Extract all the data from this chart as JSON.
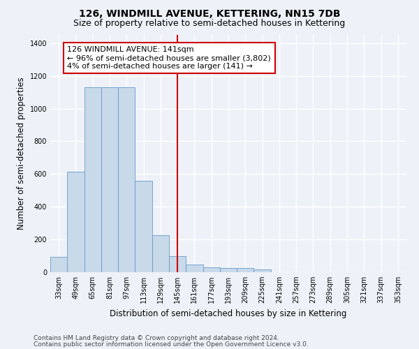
{
  "title": "126, WINDMILL AVENUE, KETTERING, NN15 7DB",
  "subtitle": "Size of property relative to semi-detached houses in Kettering",
  "xlabel": "Distribution of semi-detached houses by size in Kettering",
  "ylabel": "Number of semi-detached properties",
  "categories": [
    "33sqm",
    "49sqm",
    "65sqm",
    "81sqm",
    "97sqm",
    "113sqm",
    "129sqm",
    "145sqm",
    "161sqm",
    "177sqm",
    "193sqm",
    "209sqm",
    "225sqm",
    "241sqm",
    "257sqm",
    "273sqm",
    "289sqm",
    "305sqm",
    "321sqm",
    "337sqm",
    "353sqm"
  ],
  "values": [
    95,
    615,
    1130,
    1130,
    1130,
    560,
    225,
    100,
    48,
    30,
    25,
    25,
    18,
    0,
    0,
    0,
    0,
    0,
    0,
    0,
    0
  ],
  "bar_color": "#c8d9ea",
  "bar_edge_color": "#6699cc",
  "vline_color": "#cc0000",
  "annotation_text_line1": "126 WINDMILL AVENUE: 141sqm",
  "annotation_text_line2": "← 96% of semi-detached houses are smaller (3,802)",
  "annotation_text_line3": "4% of semi-detached houses are larger (141) →",
  "annotation_box_color": "#ffffff",
  "annotation_box_edge": "#cc0000",
  "ylim": [
    0,
    1450
  ],
  "yticks": [
    0,
    200,
    400,
    600,
    800,
    1000,
    1200,
    1400
  ],
  "footer1": "Contains HM Land Registry data © Crown copyright and database right 2024.",
  "footer2": "Contains public sector information licensed under the Open Government Licence v3.0.",
  "bg_color": "#eef2f8",
  "grid_color": "#ffffff",
  "title_fontsize": 10,
  "subtitle_fontsize": 9,
  "axis_label_fontsize": 8.5,
  "tick_fontsize": 7,
  "annotation_fontsize": 8,
  "footer_fontsize": 6.5,
  "vline_x_idx": 7.0
}
